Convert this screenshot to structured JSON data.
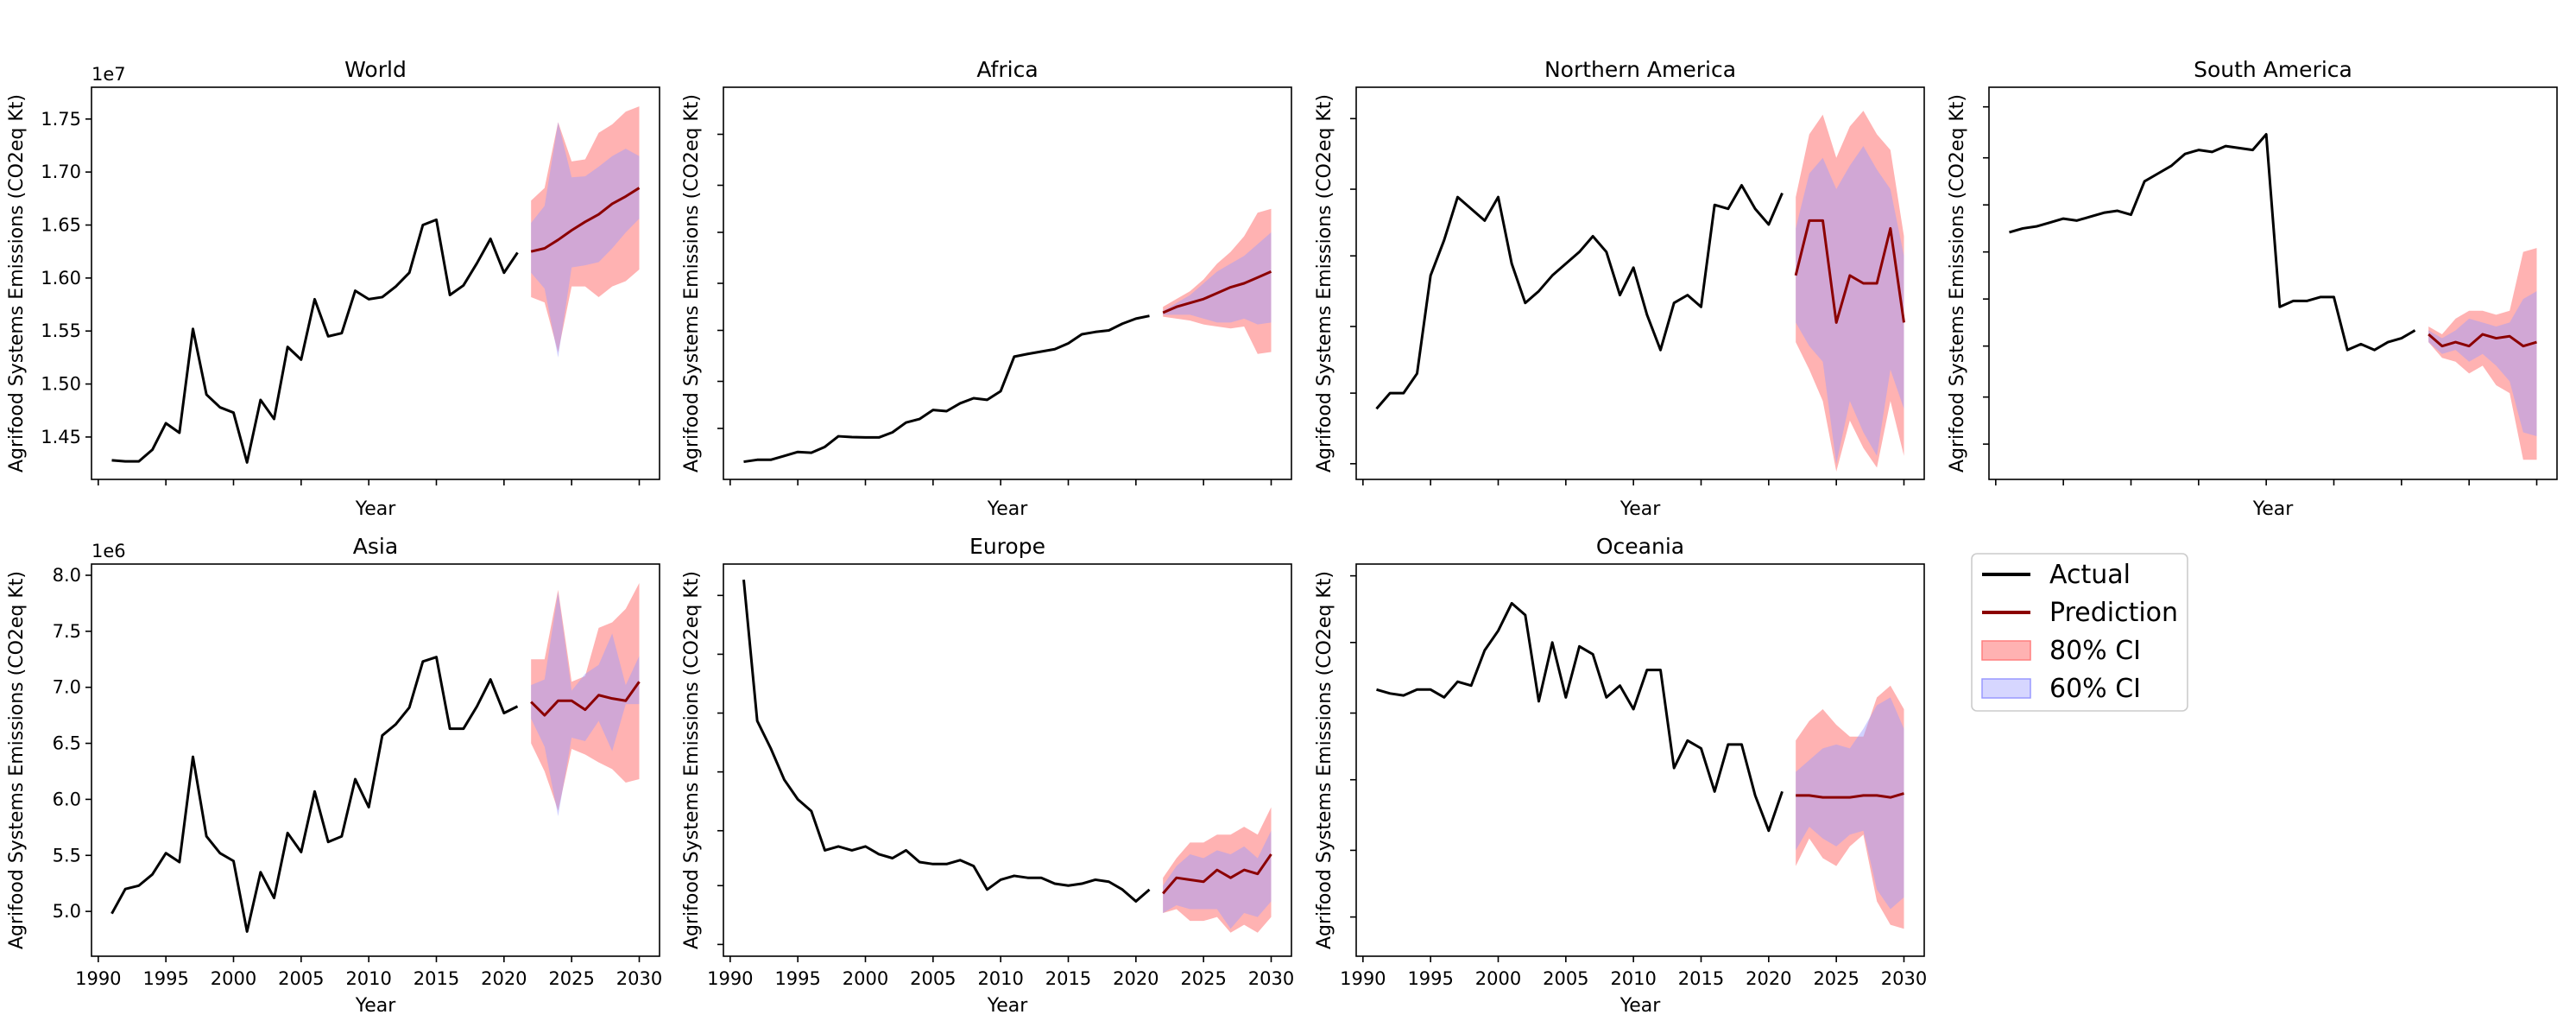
{
  "figure": {
    "legend": [
      {
        "label": "Actual",
        "kind": "line",
        "color": "#000000"
      },
      {
        "label": "Prediction",
        "kind": "line",
        "color": "#8b0000"
      },
      {
        "label": "80% CI",
        "kind": "patch",
        "color": "#ff7f7f"
      },
      {
        "label": "60% CI",
        "kind": "patch",
        "color": "#9999ff"
      }
    ],
    "colors": {
      "actual": "#000000",
      "prediction": "#8b0000",
      "ci80": "#ff7f7f",
      "ci60": "#9999ff"
    }
  },
  "chart_data": [
    {
      "type": "line",
      "title": "World",
      "xlabel": "Year",
      "ylabel": "Agrifood Systems Emissions (CO2eq Kt)",
      "y_offset_label": "1e7",
      "scale": 10000000,
      "ylim": [
        14.1,
        17.8
      ],
      "xlim": [
        1989.5,
        2031.5
      ],
      "xticks": [
        1990,
        1995,
        2000,
        2005,
        2010,
        2015,
        2020,
        2025,
        2030
      ],
      "show_xtick_labels": false,
      "yticks": [
        14.5,
        15.0,
        15.5,
        16.0,
        16.5,
        17.0,
        17.5
      ],
      "ytick_labels": [
        "1.45",
        "1.50",
        "1.55",
        "1.60",
        "1.65",
        "1.70",
        "1.75"
      ],
      "actual": {
        "x": [
          1991,
          1992,
          1993,
          1994,
          1995,
          1996,
          1997,
          1998,
          1999,
          2000,
          2001,
          2002,
          2003,
          2004,
          2005,
          2006,
          2007,
          2008,
          2009,
          2010,
          2011,
          2012,
          2013,
          2014,
          2015,
          2016,
          2017,
          2018,
          2019,
          2020,
          2021
        ],
        "y": [
          14.28,
          14.27,
          14.27,
          14.38,
          14.63,
          14.54,
          15.52,
          14.9,
          14.78,
          14.73,
          14.26,
          14.85,
          14.67,
          15.35,
          15.23,
          15.8,
          15.45,
          15.48,
          15.88,
          15.8,
          15.82,
          15.92,
          16.05,
          16.5,
          16.55,
          15.84,
          15.93,
          16.14,
          16.37,
          16.05,
          16.24
        ]
      },
      "prediction": {
        "x": [
          2022,
          2023,
          2024,
          2025,
          2026,
          2027,
          2028,
          2029,
          2030
        ],
        "y": [
          16.25,
          16.28,
          16.36,
          16.45,
          16.53,
          16.6,
          16.7,
          16.77,
          16.85
        ]
      },
      "ci80": {
        "low": [
          15.82,
          15.77,
          15.3,
          15.92,
          15.92,
          15.82,
          15.92,
          15.97,
          16.08
        ],
        "high": [
          16.73,
          16.85,
          17.47,
          17.1,
          17.12,
          17.37,
          17.45,
          17.57,
          17.62
        ]
      },
      "ci60": {
        "low": [
          16.05,
          15.9,
          15.25,
          16.1,
          16.12,
          16.15,
          16.28,
          16.43,
          16.56
        ],
        "high": [
          16.52,
          16.68,
          17.47,
          16.95,
          16.96,
          17.05,
          17.15,
          17.22,
          17.15
        ]
      }
    },
    {
      "type": "line",
      "title": "Africa",
      "xlabel": "Year",
      "ylabel": "Agrifood Systems Emissions (CO2eq Kt)",
      "ylim": [
        0,
        100
      ],
      "xlim": [
        1989.5,
        2031.5
      ],
      "xticks": [
        1990,
        1995,
        2000,
        2005,
        2010,
        2015,
        2020,
        2025,
        2030
      ],
      "show_xtick_labels": false,
      "yticks": [
        13,
        25,
        38,
        50,
        63,
        75,
        88
      ],
      "show_ytick_labels": false,
      "actual": {
        "x": [
          1991,
          1992,
          1993,
          1994,
          1995,
          1996,
          1997,
          1998,
          1999,
          2000,
          2001,
          2002,
          2003,
          2004,
          2005,
          2006,
          2007,
          2008,
          2009,
          2010,
          2011,
          2012,
          2013,
          2014,
          2015,
          2016,
          2017,
          2018,
          2019,
          2020,
          2021
        ],
        "y": [
          4.5,
          5,
          5,
          6,
          7,
          6.8,
          8.3,
          11,
          10.8,
          10.7,
          10.7,
          12,
          14.5,
          15.4,
          17.7,
          17.4,
          19.4,
          20.7,
          20.3,
          22.5,
          31.3,
          32,
          32.6,
          33.2,
          34.7,
          37,
          37.6,
          38,
          39.7,
          41,
          41.7
        ]
      },
      "prediction": {
        "x": [
          2022,
          2023,
          2024,
          2025,
          2026,
          2027,
          2028,
          2029,
          2030
        ],
        "y": [
          42.5,
          44,
          45,
          46,
          47.5,
          49,
          50,
          51.5,
          53
        ]
      },
      "ci80": {
        "low": [
          41.5,
          41,
          40.5,
          39.5,
          39,
          38.5,
          39,
          32,
          32.5
        ],
        "high": [
          44,
          46,
          48,
          51,
          55,
          58,
          62,
          68,
          69
        ]
      },
      "ci60": {
        "low": [
          42,
          42,
          42,
          41,
          40,
          40,
          41,
          39.5,
          40
        ],
        "high": [
          43,
          45,
          47,
          50,
          53,
          55,
          57,
          60,
          63
        ]
      }
    },
    {
      "type": "line",
      "title": "Northern America",
      "xlabel": "Year",
      "ylabel": "Agrifood Systems Emissions (CO2eq Kt)",
      "ylim": [
        0,
        100
      ],
      "xlim": [
        1989.5,
        2031.5
      ],
      "xticks": [
        1990,
        1995,
        2000,
        2005,
        2010,
        2015,
        2020,
        2025,
        2030
      ],
      "show_xtick_labels": false,
      "yticks": [
        4,
        22,
        39,
        57,
        74,
        92
      ],
      "show_ytick_labels": false,
      "actual": {
        "x": [
          1991,
          1992,
          1993,
          1994,
          1995,
          1996,
          1997,
          1998,
          1999,
          2000,
          2001,
          2002,
          2003,
          2004,
          2005,
          2006,
          2007,
          2008,
          2009,
          2010,
          2011,
          2012,
          2013,
          2014,
          2015,
          2016,
          2017,
          2018,
          2019,
          2020,
          2021
        ],
        "y": [
          18,
          22,
          22,
          27,
          52,
          61,
          72,
          69,
          66,
          72,
          55,
          45,
          48,
          52,
          55,
          58,
          62,
          58,
          47,
          54,
          42,
          33,
          45,
          47,
          44,
          70,
          69,
          75,
          69,
          65,
          73
        ]
      },
      "prediction": {
        "x": [
          2022,
          2023,
          2024,
          2025,
          2026,
          2027,
          2028,
          2029,
          2030
        ],
        "y": [
          52,
          66,
          66,
          40,
          52,
          50,
          50,
          64,
          40
        ]
      },
      "ci80": {
        "low": [
          35,
          28,
          20,
          2,
          15,
          8,
          3,
          20,
          6
        ],
        "high": [
          72,
          88,
          93,
          82,
          90,
          94,
          88,
          84,
          62
        ]
      },
      "ci60": {
        "low": [
          40,
          34,
          30,
          4,
          20,
          12,
          6,
          28,
          18
        ],
        "high": [
          64,
          78,
          82,
          74,
          80,
          85,
          79,
          74,
          57
        ]
      }
    },
    {
      "type": "line",
      "title": "South America",
      "xlabel": "Year",
      "ylabel": "Agrifood Systems Emissions (CO2eq Kt)",
      "ylim": [
        0,
        100
      ],
      "xlim": [
        1989.5,
        2031.5
      ],
      "xticks": [
        1990,
        1995,
        2000,
        2005,
        2010,
        2015,
        2020,
        2025,
        2030
      ],
      "show_xtick_labels": false,
      "yticks": [
        9,
        21,
        34,
        46,
        58,
        70,
        82,
        95
      ],
      "show_ytick_labels": false,
      "actual": {
        "x": [
          1991,
          1992,
          1993,
          1994,
          1995,
          1996,
          1997,
          1998,
          1999,
          2000,
          2001,
          2002,
          2003,
          2004,
          2005,
          2006,
          2007,
          2008,
          2009,
          2010,
          2011,
          2012,
          2013,
          2014,
          2015,
          2016,
          2017,
          2018,
          2019,
          2020,
          2021
        ],
        "y": [
          63,
          64,
          64.5,
          65.5,
          66.5,
          66,
          67,
          68,
          68.5,
          67.5,
          76,
          78,
          80,
          83,
          84,
          83.5,
          85,
          84.5,
          84,
          88,
          44,
          45.5,
          45.5,
          46.5,
          46.5,
          33,
          34.5,
          33,
          35,
          36,
          38
        ]
      },
      "prediction": {
        "x": [
          2022,
          2023,
          2024,
          2025,
          2026,
          2027,
          2028,
          2029,
          2030
        ],
        "y": [
          37,
          34,
          35,
          34,
          37,
          36,
          36.5,
          34,
          35
        ]
      },
      "ci80": {
        "low": [
          35,
          31,
          30,
          27,
          29,
          24,
          22,
          5,
          5
        ],
        "high": [
          39,
          37,
          41,
          43,
          43,
          42,
          43,
          58,
          59
        ]
      },
      "ci60": {
        "low": [
          35,
          32,
          33,
          30,
          32,
          29,
          25,
          12,
          11
        ],
        "high": [
          38,
          36,
          38,
          41,
          40,
          39,
          40,
          46,
          48
        ]
      }
    },
    {
      "type": "line",
      "title": "Asia",
      "xlabel": "Year",
      "ylabel": "Agrifood Systems Emissions (CO2eq Kt)",
      "y_offset_label": "1e6",
      "scale": 1000000,
      "ylim": [
        4.6,
        8.1
      ],
      "xlim": [
        1989.5,
        2031.5
      ],
      "xticks": [
        1990,
        1995,
        2000,
        2005,
        2010,
        2015,
        2020,
        2025,
        2030
      ],
      "xtick_labels": [
        "1990",
        "1995",
        "2000",
        "2005",
        "2010",
        "2015",
        "2020",
        "2025",
        "2030"
      ],
      "yticks": [
        5.0,
        5.5,
        6.0,
        6.5,
        7.0,
        7.5,
        8.0
      ],
      "ytick_labels": [
        "5.0",
        "5.5",
        "6.0",
        "6.5",
        "7.0",
        "7.5",
        "8.0"
      ],
      "actual": {
        "x": [
          1991,
          1992,
          1993,
          1994,
          1995,
          1996,
          1997,
          1998,
          1999,
          2000,
          2001,
          2002,
          2003,
          2004,
          2005,
          2006,
          2007,
          2008,
          2009,
          2010,
          2011,
          2012,
          2013,
          2014,
          2015,
          2016,
          2017,
          2018,
          2019,
          2020,
          2021
        ],
        "y": [
          4.98,
          5.2,
          5.23,
          5.33,
          5.52,
          5.44,
          6.38,
          5.67,
          5.52,
          5.45,
          4.82,
          5.35,
          5.12,
          5.7,
          5.53,
          6.07,
          5.62,
          5.67,
          6.18,
          5.93,
          6.57,
          6.67,
          6.82,
          7.23,
          7.27,
          6.63,
          6.63,
          6.83,
          7.07,
          6.77,
          6.83
        ]
      },
      "prediction": {
        "x": [
          2022,
          2023,
          2024,
          2025,
          2026,
          2027,
          2028,
          2029,
          2030
        ],
        "y": [
          6.87,
          6.75,
          6.88,
          6.88,
          6.8,
          6.93,
          6.9,
          6.88,
          7.05
        ]
      },
      "ci80": {
        "low": [
          6.5,
          6.25,
          5.9,
          6.45,
          6.4,
          6.33,
          6.27,
          6.15,
          6.18
        ],
        "high": [
          7.25,
          7.25,
          7.87,
          7.05,
          7.1,
          7.53,
          7.58,
          7.7,
          7.93
        ]
      },
      "ci60": {
        "low": [
          6.72,
          6.47,
          5.85,
          6.55,
          6.52,
          6.7,
          6.43,
          6.85,
          6.85
        ],
        "high": [
          7.02,
          7.07,
          7.85,
          6.97,
          7.12,
          7.2,
          7.48,
          7.02,
          7.28
        ]
      }
    },
    {
      "type": "line",
      "title": "Europe",
      "xlabel": "Year",
      "ylabel": "Agrifood Systems Emissions (CO2eq Kt)",
      "ylim": [
        0,
        100
      ],
      "xlim": [
        1989.5,
        2031.5
      ],
      "xticks": [
        1990,
        1995,
        2000,
        2005,
        2010,
        2015,
        2020,
        2025,
        2030
      ],
      "xtick_labels": [
        "1990",
        "1995",
        "2000",
        "2005",
        "2010",
        "2015",
        "2020",
        "2025",
        "2030"
      ],
      "yticks": [
        3,
        18,
        32,
        47,
        62,
        77,
        92
      ],
      "show_ytick_labels": false,
      "actual": {
        "x": [
          1991,
          1992,
          1993,
          1994,
          1995,
          1996,
          1997,
          1998,
          1999,
          2000,
          2001,
          2002,
          2003,
          2004,
          2005,
          2006,
          2007,
          2008,
          2009,
          2010,
          2011,
          2012,
          2013,
          2014,
          2015,
          2016,
          2017,
          2018,
          2019,
          2020,
          2021
        ],
        "y": [
          96,
          60,
          53,
          45,
          40,
          37,
          27,
          28,
          27,
          28,
          26,
          25,
          27,
          24,
          23.5,
          23.5,
          24.5,
          23,
          17,
          19.5,
          20.5,
          20,
          20,
          18.5,
          18,
          18.5,
          19.5,
          19,
          17,
          14,
          17
        ]
      },
      "prediction": {
        "x": [
          2022,
          2023,
          2024,
          2025,
          2026,
          2027,
          2028,
          2029,
          2030
        ],
        "y": [
          16,
          20,
          19.5,
          19,
          22,
          20,
          22,
          21,
          26
        ]
      },
      "ci80": {
        "low": [
          11,
          12,
          9,
          9,
          10,
          6,
          8,
          6,
          10
        ],
        "high": [
          20,
          25,
          29,
          29,
          31,
          31,
          33,
          31,
          38
        ]
      },
      "ci60": {
        "low": [
          11,
          13,
          12,
          12,
          12,
          7,
          11,
          10,
          14
        ],
        "high": [
          18,
          23,
          26,
          25,
          27,
          26,
          28,
          25,
          32
        ]
      }
    },
    {
      "type": "line",
      "title": "Oceania",
      "xlabel": "Year",
      "ylabel": "Agrifood Systems Emissions (CO2eq Kt)",
      "ylim": [
        0,
        100
      ],
      "xlim": [
        1989.5,
        2031.5
      ],
      "xticks": [
        1990,
        1995,
        2000,
        2005,
        2010,
        2015,
        2020,
        2025,
        2030
      ],
      "xtick_labels": [
        "1990",
        "1995",
        "2000",
        "2005",
        "2010",
        "2015",
        "2020",
        "2025",
        "2030"
      ],
      "yticks": [
        10,
        27,
        45,
        62,
        80,
        97
      ],
      "show_ytick_labels": false,
      "actual": {
        "x": [
          1991,
          1992,
          1993,
          1994,
          1995,
          1996,
          1997,
          1998,
          1999,
          2000,
          2001,
          2002,
          2003,
          2004,
          2005,
          2006,
          2007,
          2008,
          2009,
          2010,
          2011,
          2012,
          2013,
          2014,
          2015,
          2016,
          2017,
          2018,
          2019,
          2020,
          2021
        ],
        "y": [
          68,
          67,
          66.5,
          68,
          68,
          66,
          70,
          69,
          78,
          83,
          90,
          87,
          65,
          80,
          66,
          79,
          77,
          66,
          69,
          63,
          73,
          73,
          48,
          55,
          53,
          42,
          54,
          54,
          41,
          32,
          42
        ]
      },
      "prediction": {
        "x": [
          2022,
          2023,
          2024,
          2025,
          2026,
          2027,
          2028,
          2029,
          2030
        ],
        "y": [
          41,
          41,
          40.5,
          40.5,
          40.5,
          41,
          41,
          40.5,
          41.5
        ]
      },
      "ci80": {
        "low": [
          23,
          30,
          25,
          23,
          28,
          31,
          14,
          8,
          7
        ],
        "high": [
          55,
          60,
          63,
          59,
          56,
          56,
          66,
          69,
          63
        ]
      },
      "ci60": {
        "low": [
          27,
          33,
          30,
          28,
          31,
          32,
          17,
          12,
          15
        ],
        "high": [
          47,
          50,
          53,
          54,
          53,
          58,
          64,
          66,
          58
        ]
      }
    }
  ]
}
